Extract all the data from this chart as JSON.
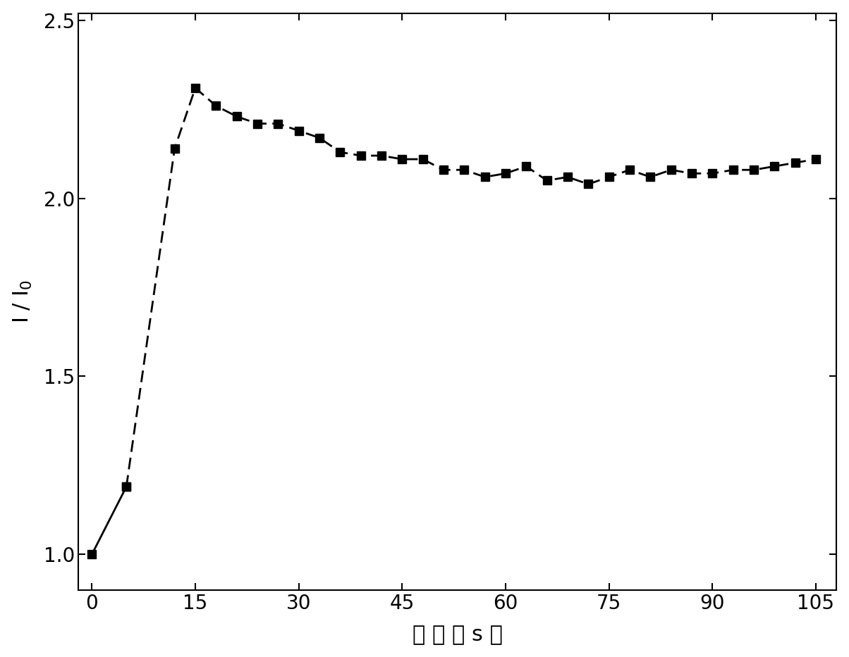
{
  "x": [
    0,
    5,
    12,
    15,
    18,
    21,
    24,
    27,
    30,
    33,
    36,
    39,
    42,
    45,
    48,
    51,
    54,
    57,
    60,
    63,
    66,
    69,
    72,
    75,
    78,
    81,
    84,
    87,
    90,
    93,
    96,
    99,
    102,
    105
  ],
  "y": [
    1.0,
    1.19,
    2.14,
    2.31,
    2.26,
    2.23,
    2.21,
    2.21,
    2.19,
    2.17,
    2.13,
    2.12,
    2.12,
    2.11,
    2.11,
    2.08,
    2.08,
    2.06,
    2.07,
    2.09,
    2.05,
    2.06,
    2.04,
    2.06,
    2.08,
    2.06,
    2.08,
    2.07,
    2.07,
    2.08,
    2.08,
    2.09,
    2.1,
    2.11
  ],
  "solid_until_idx": 1,
  "xlabel_parts": [
    "时",
    " ",
    "间",
    "（",
    " ",
    "s",
    " ",
    "）"
  ],
  "xlabel": "时 间 （ s ）",
  "ylabel": "I / I$_0$",
  "xlim": [
    -2,
    108
  ],
  "ylim": [
    0.9,
    2.52
  ],
  "xticks": [
    0,
    15,
    30,
    45,
    60,
    75,
    90,
    105
  ],
  "yticks": [
    1.0,
    1.5,
    2.0,
    2.5
  ],
  "line_color": "#000000",
  "marker": "s",
  "marker_size": 9,
  "linewidth": 2.0,
  "xlabel_fontsize": 22,
  "ylabel_fontsize": 22,
  "tick_fontsize": 20,
  "fig_width": 12.04,
  "fig_height": 9.33,
  "dpi": 100
}
